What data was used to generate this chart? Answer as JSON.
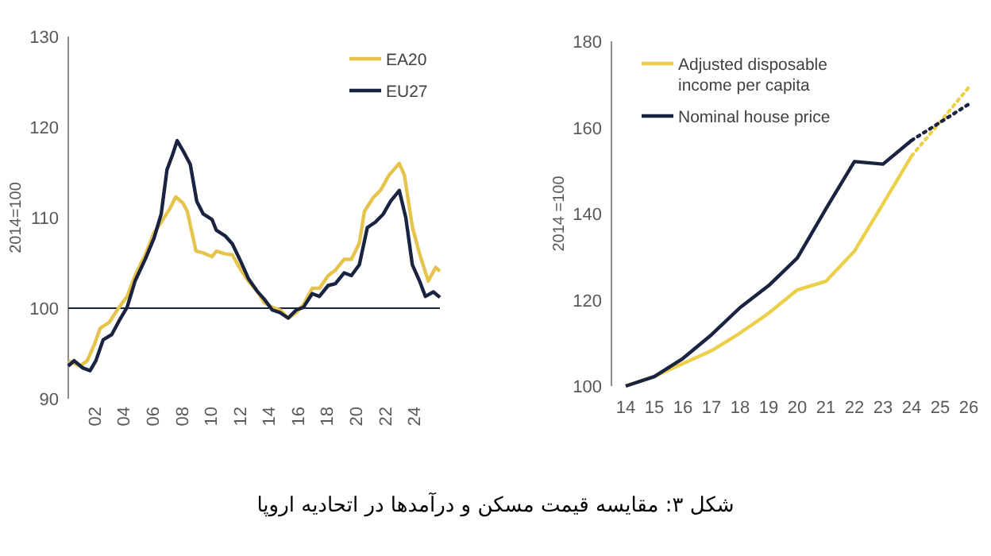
{
  "chart_data": [
    {
      "type": "line",
      "ylabel": "2014=100",
      "xlim": [
        2000.2,
        2025.8
      ],
      "xticks": [
        {
          "value": 2002,
          "label": "02"
        },
        {
          "value": 2004,
          "label": "04"
        },
        {
          "value": 2006,
          "label": "06"
        },
        {
          "value": 2008,
          "label": "08"
        },
        {
          "value": 2010,
          "label": "10"
        },
        {
          "value": 2012,
          "label": "12"
        },
        {
          "value": 2014,
          "label": "14"
        },
        {
          "value": 2016,
          "label": "16"
        },
        {
          "value": 2018,
          "label": "18"
        },
        {
          "value": 2020,
          "label": "20"
        },
        {
          "value": 2022,
          "label": "22"
        },
        {
          "value": 2024,
          "label": "24"
        }
      ],
      "ylim": [
        90,
        130
      ],
      "yticks": [
        90,
        100,
        110,
        120,
        130
      ],
      "ref_lines": [
        {
          "axis": "y",
          "value": 100,
          "color": "#1a2340"
        }
      ],
      "legend": "top right",
      "annotations": [
        "شکل ۳: مقایسه قیمت مسکن و درآمدها در اتحادیه اروپا"
      ],
      "series": [
        {
          "name": "EA20",
          "color": "#e6c34a",
          "x": [
            2000.2,
            2001.0,
            2001.5,
            2002,
            2002.4,
            2003,
            2003.7,
            2004.25,
            2004.8,
            2005.5,
            2006.1,
            2006.6,
            2007.2,
            2007.6,
            2008.1,
            2008.4,
            2009,
            2009.5,
            2010.1,
            2010.4,
            2011,
            2011.5,
            2012.1,
            2012.6,
            2013.2,
            2013.7,
            2014.25,
            2014.8,
            2015.35,
            2015.9,
            2016.4,
            2017,
            2017.5,
            2018.1,
            2018.6,
            2019.2,
            2019.7,
            2020.25,
            2020.6,
            2021.2,
            2021.7,
            2022.3,
            2023,
            2023.35,
            2023.9,
            2024.4,
            2025,
            2025.5,
            2025.8
          ],
          "values": [
            94.2,
            93.6,
            94.2,
            96,
            97.8,
            98.4,
            100.1,
            101.3,
            103.6,
            105.9,
            108.3,
            109.5,
            111,
            112.3,
            111.6,
            110.7,
            106.3,
            106.1,
            105.7,
            106.3,
            106,
            105.9,
            104.2,
            103,
            101.9,
            100.6,
            100.1,
            99.8,
            98.9,
            99.5,
            100.4,
            102.2,
            102.2,
            103.6,
            104.2,
            105.4,
            105.4,
            107.2,
            110.7,
            112.2,
            113,
            114.7,
            116,
            114.7,
            109,
            106,
            103,
            104.5,
            104.1
          ]
        },
        {
          "name": "EU27",
          "color": "#1a2340",
          "x": [
            2000.2,
            2000.6,
            2001.2,
            2001.7,
            2002.1,
            2002.6,
            2003.2,
            2003.7,
            2004.25,
            2004.8,
            2005.5,
            2006.1,
            2006.6,
            2007,
            2007.35,
            2007.7,
            2008.1,
            2008.6,
            2009.05,
            2009.5,
            2010.1,
            2010.4,
            2011,
            2011.5,
            2012.1,
            2012.6,
            2013.2,
            2013.7,
            2014.25,
            2014.8,
            2015.35,
            2015.9,
            2016.4,
            2017,
            2017.5,
            2018.1,
            2018.6,
            2019.2,
            2019.7,
            2020.25,
            2020.8,
            2021.35,
            2021.9,
            2022.4,
            2023,
            2023.45,
            2023.9,
            2024.4,
            2024.8,
            2025.35,
            2025.8
          ],
          "values": [
            93.6,
            94.2,
            93.4,
            93.1,
            94.2,
            96.5,
            97.1,
            98.6,
            100.1,
            103,
            105.4,
            107.7,
            110.4,
            115.3,
            116.8,
            118.5,
            117.4,
            115.9,
            111.8,
            110.4,
            109.8,
            108.6,
            108,
            107.1,
            105.1,
            103.3,
            101.9,
            101,
            99.8,
            99.5,
            98.9,
            99.8,
            100.1,
            101.6,
            101.3,
            102.5,
            102.7,
            103.9,
            103.6,
            104.8,
            108.9,
            109.5,
            110.4,
            111.8,
            113,
            110,
            104.8,
            103,
            101.3,
            101.8,
            101.2
          ]
        }
      ]
    },
    {
      "type": "line",
      "ylabel": "2014 =100",
      "categories": [
        "14",
        "15",
        "16",
        "17",
        "18",
        "19",
        "20",
        "21",
        "22",
        "23",
        "24",
        "25",
        "26"
      ],
      "ylim": [
        100,
        180
      ],
      "yticks": [
        100,
        120,
        140,
        160,
        180
      ],
      "legend": "top left",
      "series": [
        {
          "name": "Adjusted disposable income per capita",
          "color": "#ecd04a",
          "values": [
            100,
            102.2,
            105.2,
            108.2,
            112.3,
            116.9,
            122.3,
            124.3,
            131.3,
            142.3,
            153.4,
            null,
            null
          ]
        },
        {
          "name": "Nominal house price",
          "color": "#1a2340",
          "values": [
            100,
            102.2,
            106.4,
            111.9,
            118.2,
            123.3,
            129.7,
            141.1,
            152.1,
            151.5,
            157,
            null,
            null
          ]
        },
        {
          "color": "#ecd04a",
          "line_style": "dotted",
          "values": [
            null,
            null,
            null,
            null,
            null,
            null,
            null,
            null,
            null,
            null,
            153.4,
            161.3,
            169.3
          ]
        },
        {
          "color": "#1a2340",
          "line_style": "dotted",
          "values": [
            null,
            null,
            null,
            null,
            null,
            null,
            null,
            null,
            null,
            null,
            157,
            161.2,
            165.4
          ]
        }
      ]
    }
  ]
}
